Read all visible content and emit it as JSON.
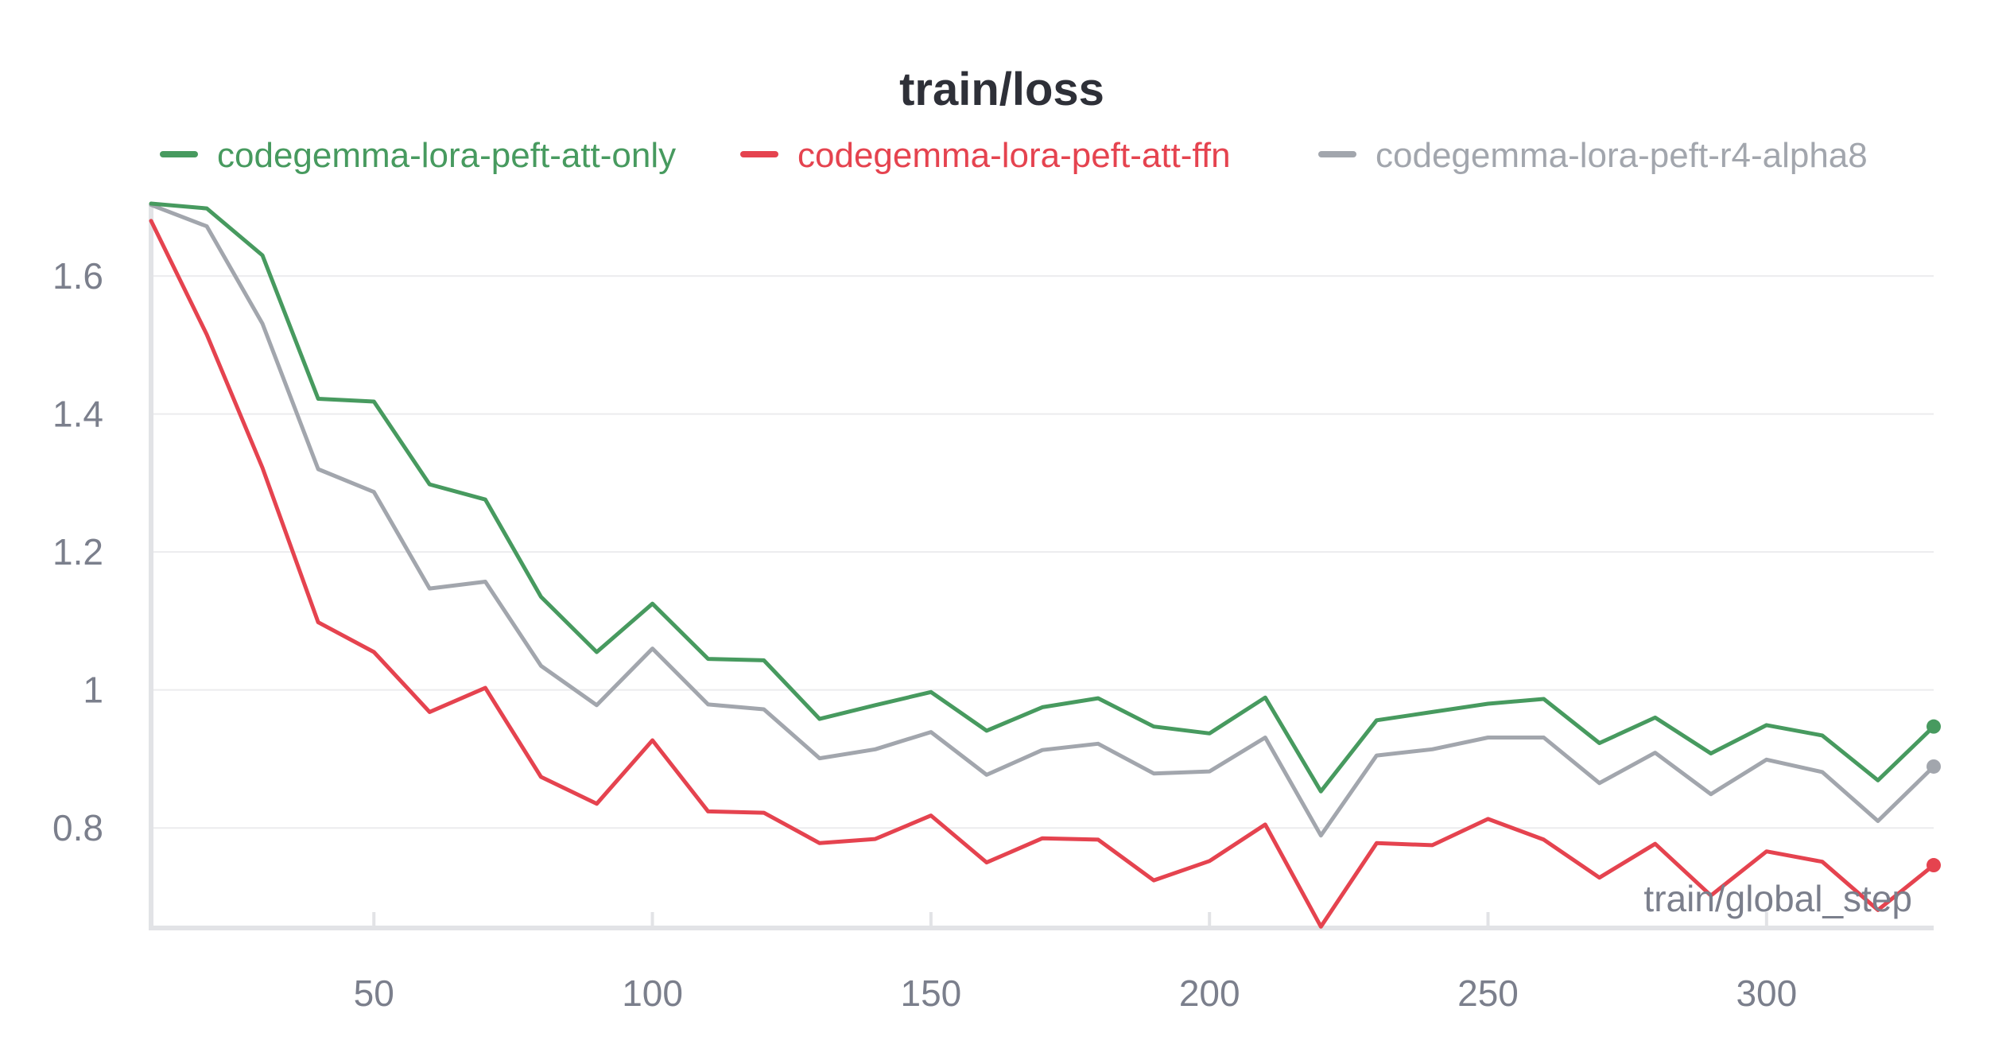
{
  "chart_data": {
    "type": "line",
    "title": "train/loss",
    "xlabel": "train/global_step",
    "ylabel": "",
    "xlim": [
      10,
      330
    ],
    "ylim": [
      0.655,
      1.705
    ],
    "xticks": [
      50,
      100,
      150,
      200,
      250,
      300
    ],
    "yticks": [
      0.8,
      1,
      1.2,
      1.4,
      1.6
    ],
    "ytick_labels": [
      "0.8",
      "1",
      "1.2",
      "1.4",
      "1.6"
    ],
    "grid": true,
    "legend_position": "top",
    "x": [
      10,
      20,
      30,
      40,
      50,
      60,
      70,
      80,
      90,
      100,
      110,
      120,
      130,
      140,
      150,
      160,
      170,
      180,
      190,
      200,
      210,
      220,
      230,
      240,
      250,
      260,
      270,
      280,
      290,
      300,
      310,
      320,
      330
    ],
    "series": [
      {
        "name": "codegemma-lora-peft-att-only",
        "color": "#479a5f",
        "values": [
          1.705,
          1.698,
          1.63,
          1.422,
          1.418,
          1.298,
          1.276,
          1.135,
          1.055,
          1.125,
          1.045,
          1.043,
          0.958,
          0.978,
          0.997,
          0.941,
          0.975,
          0.988,
          0.947,
          0.937,
          0.989,
          0.853,
          0.956,
          0.968,
          0.98,
          0.987,
          0.923,
          0.96,
          0.908,
          0.949,
          0.934,
          0.869,
          0.947
        ]
      },
      {
        "name": "codegemma-lora-peft-att-ffn",
        "color": "#e5434f",
        "values": [
          1.68,
          1.515,
          1.322,
          1.098,
          1.055,
          0.968,
          1.003,
          0.874,
          0.835,
          0.927,
          0.824,
          0.822,
          0.778,
          0.784,
          0.818,
          0.75,
          0.785,
          0.783,
          0.724,
          0.752,
          0.805,
          0.657,
          0.778,
          0.775,
          0.813,
          0.783,
          0.728,
          0.777,
          0.702,
          0.766,
          0.751,
          0.681,
          0.746
        ]
      },
      {
        "name": "codegemma-lora-peft-r4-alpha8",
        "color": "#a2a6ad",
        "values": [
          1.703,
          1.672,
          1.531,
          1.32,
          1.287,
          1.147,
          1.157,
          1.035,
          0.978,
          1.06,
          0.979,
          0.972,
          0.901,
          0.914,
          0.939,
          0.877,
          0.913,
          0.922,
          0.879,
          0.882,
          0.931,
          0.789,
          0.905,
          0.914,
          0.931,
          0.931,
          0.865,
          0.909,
          0.849,
          0.899,
          0.881,
          0.81,
          0.889
        ]
      }
    ]
  }
}
